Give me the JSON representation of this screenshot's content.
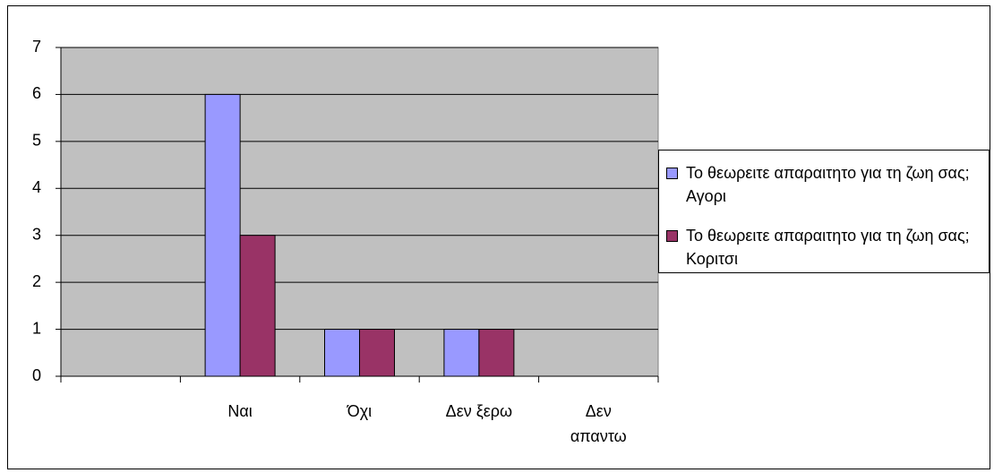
{
  "chart_data": {
    "type": "bar",
    "categories": [
      null,
      "Ναι",
      "Όχι",
      "Δεν ξερω",
      "Δεν απαντω"
    ],
    "series": [
      {
        "name": "Το θεωρειτε απαραιτητο για τη ζωη σας; Αγορι",
        "color": "#9999ff",
        "values": [
          null,
          6,
          1,
          1,
          null
        ]
      },
      {
        "name": "Το θεωρειτε απαραιτητο για τη ζωη σας; Κοριτσι",
        "color": "#993366",
        "values": [
          null,
          3,
          1,
          1,
          null
        ]
      }
    ],
    "ylim": [
      0,
      7
    ],
    "yticks": [
      0,
      1,
      2,
      3,
      4,
      5,
      6,
      7
    ],
    "grid": true,
    "legend": "right"
  }
}
